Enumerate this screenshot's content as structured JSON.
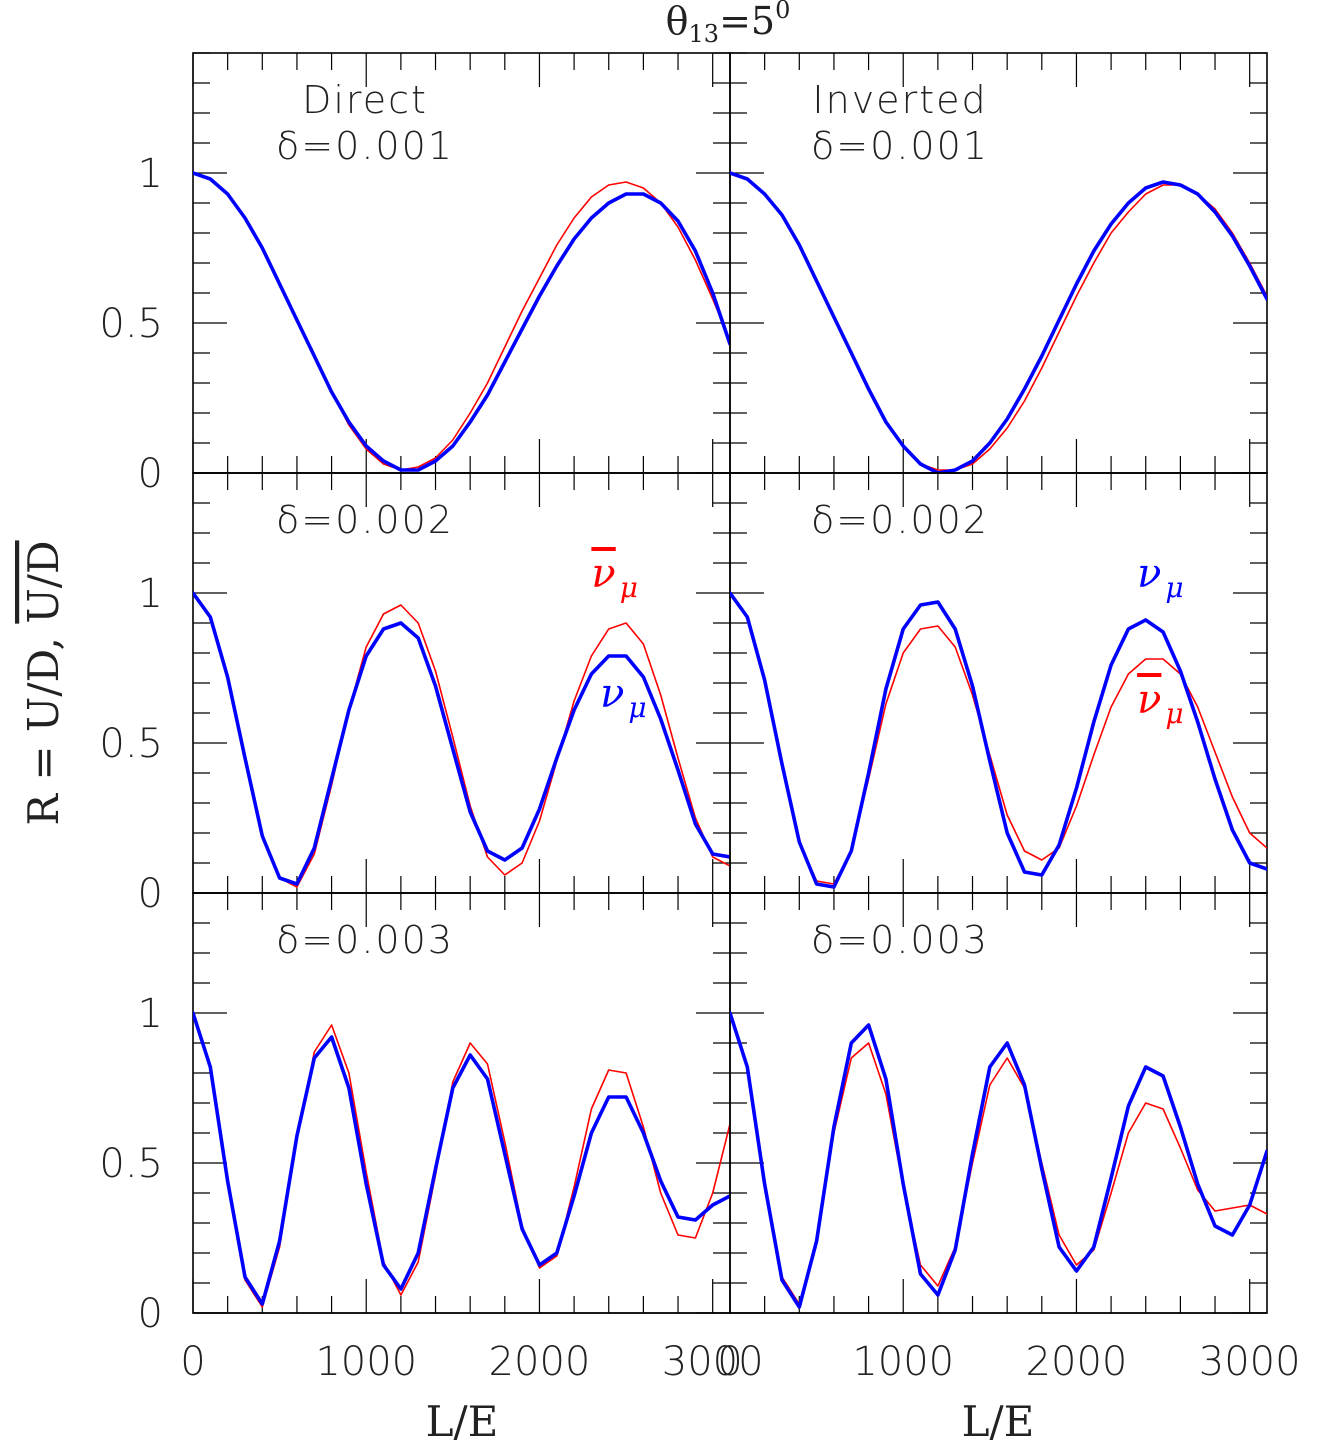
{
  "figure": {
    "title": "θ13=5°",
    "title_main": "θ",
    "title_sub": "13",
    "title_rest": "=5",
    "title_sup": "0",
    "ylabel": "R = U/D, U/D",
    "ylabel_main": "R = U/D, ",
    "ylabel_bar": "U/D",
    "xlabel": "L/E"
  },
  "colors": {
    "nu": "#0000ff",
    "nubar": "#ff0000"
  },
  "axes": {
    "xlim": [
      0,
      3100
    ],
    "ylim": [
      0,
      1.4
    ],
    "xticks": [
      0,
      1000,
      2000,
      3000
    ],
    "xtick_labels": [
      "0",
      "1000",
      "2000",
      "3000"
    ],
    "yticks": [
      0,
      0.5,
      1
    ],
    "ytick_labels": [
      "0",
      "0.5",
      "1"
    ],
    "grid": false
  },
  "legend_labels": {
    "nu": "ν",
    "nubar": "ν̄",
    "sub": "μ"
  },
  "chart_data": [
    {
      "type": "line",
      "row": 0,
      "col": 0,
      "hierarchy": "Direct",
      "delta_label": "δ=0.001",
      "series": [
        {
          "key": "nu",
          "x": [
            0,
            100,
            200,
            300,
            400,
            500,
            600,
            700,
            800,
            900,
            1000,
            1100,
            1200,
            1300,
            1400,
            1500,
            1600,
            1700,
            1800,
            1900,
            2000,
            2100,
            2200,
            2300,
            2400,
            2500,
            2600,
            2700,
            2800,
            2900,
            3000,
            3100
          ],
          "y": [
            1.0,
            0.98,
            0.93,
            0.85,
            0.75,
            0.63,
            0.51,
            0.39,
            0.27,
            0.17,
            0.09,
            0.04,
            0.01,
            0.01,
            0.04,
            0.09,
            0.17,
            0.26,
            0.37,
            0.48,
            0.59,
            0.69,
            0.78,
            0.85,
            0.9,
            0.93,
            0.93,
            0.9,
            0.84,
            0.74,
            0.6,
            0.43
          ]
        },
        {
          "key": "nubar",
          "x": [
            0,
            100,
            200,
            300,
            400,
            500,
            600,
            700,
            800,
            900,
            1000,
            1100,
            1200,
            1300,
            1400,
            1500,
            1600,
            1700,
            1800,
            1900,
            2000,
            2100,
            2200,
            2300,
            2400,
            2500,
            2600,
            2700,
            2800,
            2900,
            3000,
            3100
          ],
          "y": [
            1.0,
            0.98,
            0.93,
            0.85,
            0.75,
            0.63,
            0.51,
            0.39,
            0.27,
            0.16,
            0.08,
            0.03,
            0.01,
            0.02,
            0.05,
            0.11,
            0.2,
            0.3,
            0.42,
            0.54,
            0.65,
            0.76,
            0.85,
            0.92,
            0.96,
            0.97,
            0.95,
            0.9,
            0.82,
            0.71,
            0.58,
            0.44
          ]
        }
      ]
    },
    {
      "type": "line",
      "row": 0,
      "col": 1,
      "hierarchy": "Inverted",
      "delta_label": "δ=0.001",
      "series": [
        {
          "key": "nu",
          "x": [
            0,
            100,
            200,
            300,
            400,
            500,
            600,
            700,
            800,
            900,
            1000,
            1100,
            1200,
            1300,
            1400,
            1500,
            1600,
            1700,
            1800,
            1900,
            2000,
            2100,
            2200,
            2300,
            2400,
            2500,
            2600,
            2700,
            2800,
            2900,
            3000,
            3100
          ],
          "y": [
            1.0,
            0.98,
            0.93,
            0.86,
            0.76,
            0.64,
            0.52,
            0.4,
            0.28,
            0.17,
            0.09,
            0.03,
            0.0,
            0.01,
            0.04,
            0.1,
            0.18,
            0.28,
            0.39,
            0.51,
            0.63,
            0.74,
            0.83,
            0.9,
            0.95,
            0.97,
            0.96,
            0.93,
            0.87,
            0.79,
            0.69,
            0.58
          ]
        },
        {
          "key": "nubar",
          "x": [
            0,
            100,
            200,
            300,
            400,
            500,
            600,
            700,
            800,
            900,
            1000,
            1100,
            1200,
            1300,
            1400,
            1500,
            1600,
            1700,
            1800,
            1900,
            2000,
            2100,
            2200,
            2300,
            2400,
            2500,
            2600,
            2700,
            2800,
            2900,
            3000,
            3100
          ],
          "y": [
            1.0,
            0.98,
            0.93,
            0.86,
            0.76,
            0.64,
            0.52,
            0.4,
            0.28,
            0.17,
            0.09,
            0.03,
            0.01,
            0.01,
            0.03,
            0.08,
            0.15,
            0.24,
            0.35,
            0.47,
            0.59,
            0.7,
            0.8,
            0.87,
            0.93,
            0.96,
            0.96,
            0.93,
            0.88,
            0.8,
            0.7,
            0.59
          ]
        }
      ]
    },
    {
      "type": "line",
      "row": 1,
      "col": 0,
      "hierarchy": "",
      "delta_label": "δ=0.002",
      "series_labels": {
        "nubar": {
          "x": 2300,
          "y": 1.02
        },
        "nu": {
          "x": 2350,
          "y": 0.62
        }
      },
      "series": [
        {
          "key": "nu",
          "x": [
            0,
            100,
            200,
            300,
            400,
            500,
            600,
            700,
            800,
            900,
            1000,
            1100,
            1200,
            1300,
            1400,
            1500,
            1600,
            1700,
            1800,
            1900,
            2000,
            2100,
            2200,
            2300,
            2400,
            2500,
            2600,
            2700,
            2800,
            2900,
            3000,
            3100
          ],
          "y": [
            1.0,
            0.92,
            0.72,
            0.45,
            0.19,
            0.05,
            0.03,
            0.15,
            0.38,
            0.61,
            0.79,
            0.88,
            0.9,
            0.85,
            0.69,
            0.48,
            0.27,
            0.14,
            0.11,
            0.15,
            0.28,
            0.45,
            0.61,
            0.73,
            0.79,
            0.79,
            0.72,
            0.58,
            0.41,
            0.23,
            0.13,
            0.12
          ]
        },
        {
          "key": "nubar",
          "x": [
            0,
            100,
            200,
            300,
            400,
            500,
            600,
            700,
            800,
            900,
            1000,
            1100,
            1200,
            1300,
            1400,
            1500,
            1600,
            1700,
            1800,
            1900,
            2000,
            2100,
            2200,
            2300,
            2400,
            2500,
            2600,
            2700,
            2800,
            2900,
            3000,
            3100
          ],
          "y": [
            1.0,
            0.92,
            0.72,
            0.45,
            0.19,
            0.05,
            0.02,
            0.13,
            0.36,
            0.61,
            0.82,
            0.93,
            0.96,
            0.9,
            0.74,
            0.52,
            0.29,
            0.12,
            0.06,
            0.1,
            0.24,
            0.44,
            0.64,
            0.79,
            0.88,
            0.9,
            0.83,
            0.66,
            0.45,
            0.25,
            0.12,
            0.09
          ]
        }
      ]
    },
    {
      "type": "line",
      "row": 1,
      "col": 1,
      "hierarchy": "",
      "delta_label": "δ=0.002",
      "series_labels": {
        "nu": {
          "x": 2350,
          "y": 1.02
        },
        "nubar": {
          "x": 2350,
          "y": 0.6
        }
      },
      "series": [
        {
          "key": "nu",
          "x": [
            0,
            100,
            200,
            300,
            400,
            500,
            600,
            700,
            800,
            900,
            1000,
            1100,
            1200,
            1300,
            1400,
            1500,
            1600,
            1700,
            1800,
            1900,
            2000,
            2100,
            2200,
            2300,
            2400,
            2500,
            2600,
            2700,
            2800,
            2900,
            3000,
            3100
          ],
          "y": [
            1.0,
            0.92,
            0.71,
            0.43,
            0.17,
            0.03,
            0.02,
            0.14,
            0.4,
            0.68,
            0.88,
            0.96,
            0.97,
            0.88,
            0.69,
            0.44,
            0.2,
            0.07,
            0.06,
            0.16,
            0.35,
            0.57,
            0.76,
            0.88,
            0.91,
            0.87,
            0.74,
            0.57,
            0.38,
            0.21,
            0.1,
            0.08
          ]
        },
        {
          "key": "nubar",
          "x": [
            0,
            100,
            200,
            300,
            400,
            500,
            600,
            700,
            800,
            900,
            1000,
            1100,
            1200,
            1300,
            1400,
            1500,
            1600,
            1700,
            1800,
            1900,
            2000,
            2100,
            2200,
            2300,
            2400,
            2500,
            2600,
            2700,
            2800,
            2900,
            3000,
            3100
          ],
          "y": [
            1.0,
            0.92,
            0.71,
            0.43,
            0.17,
            0.04,
            0.03,
            0.14,
            0.38,
            0.63,
            0.8,
            0.88,
            0.89,
            0.82,
            0.66,
            0.46,
            0.26,
            0.14,
            0.11,
            0.15,
            0.29,
            0.46,
            0.62,
            0.73,
            0.78,
            0.78,
            0.73,
            0.62,
            0.47,
            0.32,
            0.2,
            0.15
          ]
        }
      ]
    },
    {
      "type": "line",
      "row": 2,
      "col": 0,
      "hierarchy": "",
      "delta_label": "δ=0.003",
      "series": [
        {
          "key": "nu",
          "x": [
            0,
            100,
            200,
            300,
            400,
            500,
            600,
            700,
            800,
            900,
            1000,
            1100,
            1200,
            1300,
            1400,
            1500,
            1600,
            1700,
            1800,
            1900,
            2000,
            2100,
            2200,
            2300,
            2400,
            2500,
            2600,
            2700,
            2800,
            2900,
            3000,
            3100
          ],
          "y": [
            1.0,
            0.82,
            0.44,
            0.12,
            0.03,
            0.24,
            0.59,
            0.85,
            0.92,
            0.75,
            0.43,
            0.16,
            0.08,
            0.2,
            0.48,
            0.75,
            0.86,
            0.78,
            0.53,
            0.28,
            0.16,
            0.2,
            0.39,
            0.6,
            0.72,
            0.72,
            0.6,
            0.44,
            0.32,
            0.31,
            0.36,
            0.39
          ]
        },
        {
          "key": "nubar",
          "x": [
            0,
            100,
            200,
            300,
            400,
            500,
            600,
            700,
            800,
            900,
            1000,
            1100,
            1200,
            1300,
            1400,
            1500,
            1600,
            1700,
            1800,
            1900,
            2000,
            2100,
            2200,
            2300,
            2400,
            2500,
            2600,
            2700,
            2800,
            2900,
            3000,
            3100
          ],
          "y": [
            1.0,
            0.82,
            0.43,
            0.11,
            0.02,
            0.22,
            0.58,
            0.87,
            0.96,
            0.8,
            0.47,
            0.17,
            0.06,
            0.17,
            0.46,
            0.77,
            0.9,
            0.83,
            0.57,
            0.29,
            0.15,
            0.19,
            0.42,
            0.68,
            0.81,
            0.8,
            0.62,
            0.4,
            0.26,
            0.25,
            0.4,
            0.63
          ]
        }
      ]
    },
    {
      "type": "line",
      "row": 2,
      "col": 1,
      "hierarchy": "",
      "delta_label": "δ=0.003",
      "series": [
        {
          "key": "nu",
          "x": [
            0,
            100,
            200,
            300,
            400,
            500,
            600,
            700,
            800,
            900,
            1000,
            1100,
            1200,
            1300,
            1400,
            1500,
            1600,
            1700,
            1800,
            1900,
            2000,
            2100,
            2200,
            2300,
            2400,
            2500,
            2600,
            2700,
            2800,
            2900,
            3000,
            3100
          ],
          "y": [
            1.0,
            0.82,
            0.43,
            0.11,
            0.02,
            0.24,
            0.62,
            0.9,
            0.96,
            0.78,
            0.43,
            0.13,
            0.06,
            0.21,
            0.53,
            0.82,
            0.9,
            0.76,
            0.48,
            0.22,
            0.14,
            0.22,
            0.45,
            0.69,
            0.82,
            0.79,
            0.62,
            0.43,
            0.29,
            0.26,
            0.36,
            0.54
          ]
        },
        {
          "key": "nubar",
          "x": [
            0,
            100,
            200,
            300,
            400,
            500,
            600,
            700,
            800,
            900,
            1000,
            1100,
            1200,
            1300,
            1400,
            1500,
            1600,
            1700,
            1800,
            1900,
            2000,
            2100,
            2200,
            2300,
            2400,
            2500,
            2600,
            2700,
            2800,
            2900,
            3000,
            3100
          ],
          "y": [
            1.0,
            0.82,
            0.44,
            0.12,
            0.03,
            0.24,
            0.6,
            0.85,
            0.9,
            0.73,
            0.42,
            0.16,
            0.09,
            0.22,
            0.5,
            0.76,
            0.85,
            0.75,
            0.5,
            0.26,
            0.16,
            0.21,
            0.4,
            0.6,
            0.7,
            0.68,
            0.55,
            0.41,
            0.34,
            0.35,
            0.36,
            0.33
          ]
        }
      ]
    }
  ]
}
